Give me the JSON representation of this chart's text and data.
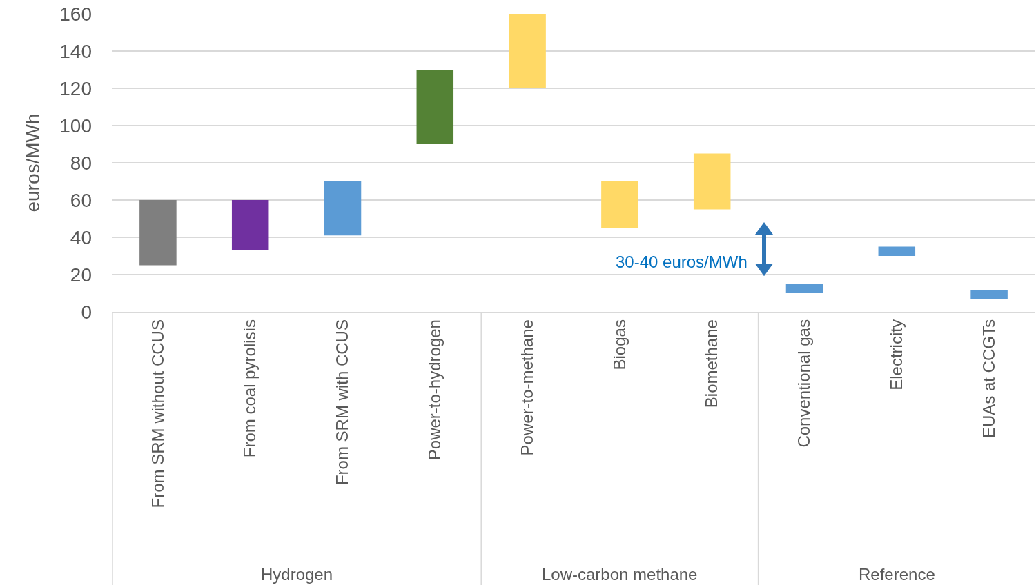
{
  "chart_data": {
    "type": "bar",
    "ylabel": "euros/MWh",
    "categories": [
      "From SRM without CCUS",
      "From coal pyrolisis",
      "From SRM with CCUS",
      "Power-to-hydrogen",
      "Power-to-methane",
      "Biogas",
      "Biomethane",
      "Conventional gas",
      "Electricity",
      "EUAs at CCGTs"
    ],
    "base": [
      25,
      33,
      41,
      90,
      120,
      45,
      55,
      10,
      30,
      7
    ],
    "values": [
      35,
      27,
      29,
      40,
      40,
      25,
      30,
      5,
      5,
      4.5
    ],
    "colors": [
      "#7f7f7f",
      "#7030a0",
      "#5b9bd5",
      "#548235",
      "#ffd966",
      "#ffd966",
      "#ffd966",
      "#5b9bd5",
      "#5b9bd5",
      "#5b9bd5"
    ],
    "ylim": [
      0,
      160
    ],
    "yticks": [
      0,
      20,
      40,
      60,
      80,
      100,
      120,
      140,
      160
    ],
    "grid": "y",
    "annotations": [
      "30-40 euros/MWh",
      "Hydrogen",
      "Low-carbon methane",
      "Reference"
    ]
  }
}
